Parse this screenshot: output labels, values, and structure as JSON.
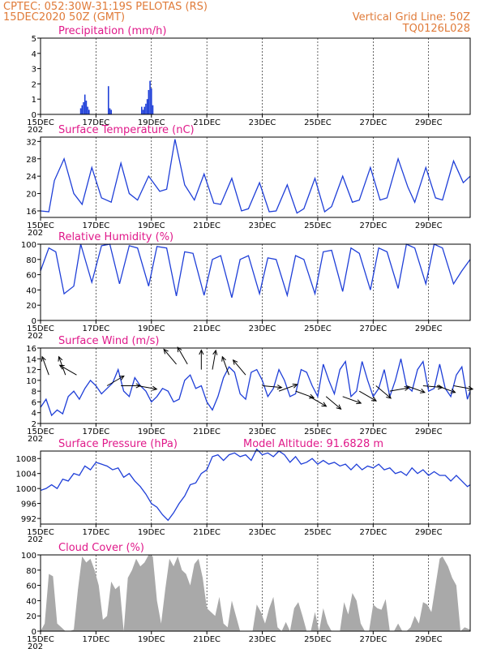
{
  "header": {
    "line1": "CPTEC:   052:30W-31:19S   PELOTAS (RS)",
    "line2": "15DEC2020 50Z (GMT)",
    "right1": "Vertical Grid Line: 50Z",
    "right2": "TQ0126L028"
  },
  "colors": {
    "header": "#e07b39",
    "title": "#e0198a",
    "series": "#1f3fd8",
    "cloud": "#a9a9a9",
    "grid": "#000000"
  },
  "x_axis": {
    "tick_labels": [
      "15DEC",
      "17DEC",
      "19DEC",
      "21DEC",
      "23DEC",
      "25DEC",
      "27DEC",
      "29DEC"
    ],
    "tick_days": [
      0,
      2,
      4,
      6,
      8,
      10,
      12,
      14
    ],
    "day_range": [
      0,
      15.5
    ],
    "year_fragment": "202"
  },
  "model_altitude": "Model Altitude: 91.6828 m",
  "chart_data": [
    {
      "id": "precip",
      "type": "bar",
      "title": "Precipitation (mm/h)",
      "ylim": [
        0,
        5
      ],
      "yticks": [
        0,
        1,
        2,
        3,
        4,
        5
      ],
      "bars": [
        [
          1.45,
          0.4
        ],
        [
          1.5,
          0.6
        ],
        [
          1.55,
          0.8
        ],
        [
          1.6,
          1.3
        ],
        [
          1.65,
          0.9
        ],
        [
          1.7,
          0.5
        ],
        [
          1.75,
          0.3
        ],
        [
          2.45,
          1.85
        ],
        [
          2.5,
          0.4
        ],
        [
          2.55,
          0.3
        ],
        [
          3.65,
          0.5
        ],
        [
          3.7,
          0.3
        ],
        [
          3.75,
          0.5
        ],
        [
          3.8,
          0.7
        ],
        [
          3.85,
          1.0
        ],
        [
          3.9,
          1.6
        ],
        [
          3.95,
          2.2
        ],
        [
          4.0,
          1.7
        ],
        [
          4.05,
          0.6
        ]
      ]
    },
    {
      "id": "temp",
      "type": "line",
      "title": "Surface Temperature (nC)",
      "ylim": [
        14.5,
        33
      ],
      "yticks": [
        16,
        20,
        24,
        28,
        32
      ],
      "x": [
        0,
        0.3,
        0.5,
        0.85,
        1.2,
        1.5,
        1.85,
        2.2,
        2.55,
        2.9,
        3.2,
        3.5,
        3.9,
        4.3,
        4.55,
        4.85,
        5.2,
        5.55,
        5.9,
        6.25,
        6.5,
        6.9,
        7.25,
        7.5,
        7.9,
        8.25,
        8.5,
        8.9,
        9.25,
        9.5,
        9.9,
        10.25,
        10.5,
        10.9,
        11.25,
        11.5,
        11.9,
        12.25,
        12.5,
        12.9,
        13.25,
        13.5,
        13.9,
        14.25,
        14.5,
        14.9,
        15.25,
        15.5
      ],
      "y": [
        16,
        15.8,
        23,
        28,
        20,
        17.5,
        26,
        19,
        18,
        27,
        20,
        18.5,
        24,
        20.5,
        21,
        32.5,
        22,
        18.5,
        24.5,
        17.8,
        17.5,
        23.5,
        16,
        16.5,
        22.5,
        15.8,
        16,
        22,
        15.5,
        16.5,
        23.5,
        15.8,
        17,
        24,
        18,
        18.5,
        26,
        18.5,
        19,
        28,
        21.5,
        18,
        26,
        19,
        18.5,
        27.5,
        22.5,
        24
      ]
    },
    {
      "id": "rh",
      "type": "line",
      "title": "Relative Humidity (%)",
      "ylim": [
        0,
        100
      ],
      "yticks": [
        0,
        20,
        40,
        60,
        80,
        100
      ],
      "x": [
        0,
        0.3,
        0.55,
        0.85,
        1.2,
        1.45,
        1.85,
        2.2,
        2.5,
        2.85,
        3.2,
        3.5,
        3.9,
        4.2,
        4.55,
        4.9,
        5.2,
        5.5,
        5.9,
        6.2,
        6.5,
        6.9,
        7.2,
        7.5,
        7.9,
        8.2,
        8.5,
        8.9,
        9.2,
        9.5,
        9.9,
        10.2,
        10.5,
        10.9,
        11.2,
        11.5,
        11.9,
        12.2,
        12.5,
        12.9,
        13.2,
        13.5,
        13.9,
        14.2,
        14.5,
        14.9,
        15.2,
        15.5
      ],
      "y": [
        65,
        95,
        90,
        35,
        45,
        100,
        50,
        98,
        100,
        48,
        98,
        95,
        45,
        97,
        95,
        32,
        90,
        88,
        33,
        80,
        85,
        30,
        80,
        85,
        35,
        82,
        80,
        33,
        85,
        80,
        35,
        90,
        92,
        38,
        95,
        88,
        40,
        95,
        90,
        42,
        100,
        95,
        48,
        100,
        95,
        48,
        65,
        80
      ]
    },
    {
      "id": "wind",
      "type": "line",
      "title": "Surface Wind (m/s)",
      "ylim": [
        2,
        16
      ],
      "yticks": [
        2,
        4,
        6,
        8,
        10,
        12,
        14,
        16
      ],
      "x": [
        0,
        0.2,
        0.4,
        0.6,
        0.8,
        1.0,
        1.2,
        1.4,
        1.6,
        1.8,
        2.0,
        2.2,
        2.4,
        2.6,
        2.8,
        3.0,
        3.2,
        3.4,
        3.6,
        3.8,
        4.0,
        4.2,
        4.4,
        4.6,
        4.8,
        5.0,
        5.2,
        5.4,
        5.6,
        5.8,
        6.0,
        6.2,
        6.4,
        6.6,
        6.8,
        7.0,
        7.2,
        7.4,
        7.6,
        7.8,
        8.0,
        8.2,
        8.4,
        8.6,
        8.8,
        9.0,
        9.2,
        9.4,
        9.6,
        9.8,
        10.0,
        10.2,
        10.4,
        10.6,
        10.8,
        11.0,
        11.2,
        11.4,
        11.6,
        11.8,
        12.0,
        12.2,
        12.4,
        12.6,
        12.8,
        13.0,
        13.2,
        13.4,
        13.6,
        13.8,
        14.0,
        14.2,
        14.4,
        14.6,
        14.8,
        15.0,
        15.2,
        15.4,
        15.5
      ],
      "y": [
        5,
        6.5,
        3.5,
        4.5,
        3.8,
        7,
        8,
        6.5,
        8.5,
        10,
        9,
        7.5,
        8.5,
        9.5,
        12,
        8,
        7,
        10.5,
        9,
        8,
        6,
        7,
        8.5,
        8,
        6,
        6.5,
        10,
        11,
        8.5,
        9,
        6,
        4.5,
        7,
        10.5,
        12.5,
        11.5,
        7.5,
        6.5,
        11.5,
        12,
        10,
        7,
        8.5,
        12,
        10,
        7,
        7.5,
        12,
        11.5,
        9,
        7,
        13,
        10,
        7.5,
        12,
        13.5,
        7,
        8,
        13.5,
        10,
        7,
        8.5,
        12,
        7,
        10,
        14,
        9,
        8,
        12,
        13.5,
        8,
        8.5,
        13,
        8.5,
        7,
        11,
        12.5,
        6.5,
        8
      ]
    },
    {
      "id": "pressure",
      "type": "line",
      "title": "Surface Pressure (hPa)",
      "ylim": [
        990.5,
        1010
      ],
      "yticks": [
        992,
        996,
        1000,
        1004,
        1008
      ],
      "x": [
        0,
        0.2,
        0.4,
        0.6,
        0.8,
        1.0,
        1.2,
        1.4,
        1.6,
        1.8,
        2.0,
        2.2,
        2.4,
        2.6,
        2.8,
        3.0,
        3.2,
        3.4,
        3.6,
        3.8,
        4.0,
        4.2,
        4.4,
        4.6,
        4.8,
        5.0,
        5.2,
        5.4,
        5.6,
        5.8,
        6.0,
        6.2,
        6.4,
        6.6,
        6.8,
        7.0,
        7.2,
        7.4,
        7.6,
        7.8,
        8.0,
        8.2,
        8.4,
        8.6,
        8.8,
        9.0,
        9.2,
        9.4,
        9.6,
        9.8,
        10.0,
        10.2,
        10.4,
        10.6,
        10.8,
        11.0,
        11.2,
        11.4,
        11.6,
        11.8,
        12.0,
        12.2,
        12.4,
        12.6,
        12.8,
        13.0,
        13.2,
        13.4,
        13.6,
        13.8,
        14.0,
        14.2,
        14.4,
        14.6,
        14.8,
        15.0,
        15.2,
        15.4,
        15.5
      ],
      "y": [
        999.5,
        1000,
        1001,
        1000,
        1002.5,
        1002,
        1004,
        1003.5,
        1006,
        1005,
        1007,
        1006.5,
        1006,
        1005,
        1005.5,
        1003,
        1004,
        1002,
        1000.5,
        998.5,
        996,
        995,
        993,
        991.5,
        993.5,
        996,
        998,
        1001,
        1001.5,
        1004,
        1005,
        1008.5,
        1009,
        1007.5,
        1009,
        1009.5,
        1008.5,
        1009,
        1007.5,
        1010.5,
        1009,
        1009.5,
        1008.5,
        1010,
        1009,
        1007,
        1008.5,
        1006.5,
        1007,
        1008,
        1006.5,
        1007.5,
        1006.5,
        1007,
        1006,
        1006.5,
        1005,
        1006.5,
        1005,
        1006,
        1005.5,
        1006.5,
        1005,
        1005.5,
        1004,
        1004.5,
        1003.5,
        1005.5,
        1004,
        1005,
        1003.5,
        1004.5,
        1003.5,
        1003.5,
        1002,
        1003.5,
        1002,
        1000.5,
        1001
      ]
    },
    {
      "id": "cloud",
      "type": "area",
      "title": "Cloud Cover (%)",
      "ylim": [
        0,
        100
      ],
      "yticks": [
        0,
        20,
        40,
        60,
        80,
        100
      ],
      "x": [
        0,
        0.15,
        0.3,
        0.45,
        0.6,
        0.75,
        0.9,
        1.05,
        1.2,
        1.35,
        1.5,
        1.65,
        1.8,
        1.95,
        2.1,
        2.25,
        2.4,
        2.55,
        2.7,
        2.85,
        3.0,
        3.15,
        3.3,
        3.45,
        3.6,
        3.75,
        3.9,
        4.05,
        4.2,
        4.35,
        4.5,
        4.65,
        4.8,
        4.95,
        5.1,
        5.25,
        5.4,
        5.55,
        5.7,
        5.85,
        6.0,
        6.15,
        6.3,
        6.45,
        6.6,
        6.75,
        6.9,
        7.05,
        7.2,
        7.35,
        7.5,
        7.65,
        7.8,
        7.95,
        8.1,
        8.25,
        8.4,
        8.55,
        8.7,
        8.85,
        9.0,
        9.15,
        9.3,
        9.45,
        9.6,
        9.75,
        9.9,
        10.05,
        10.2,
        10.35,
        10.5,
        10.65,
        10.8,
        10.95,
        11.1,
        11.25,
        11.4,
        11.55,
        11.7,
        11.85,
        12.0,
        12.15,
        12.3,
        12.45,
        12.6,
        12.75,
        12.9,
        13.05,
        13.2,
        13.35,
        13.5,
        13.65,
        13.8,
        13.95,
        14.1,
        14.25,
        14.4,
        14.5,
        14.7,
        14.85,
        15.0,
        15.15,
        15.3,
        15.5
      ],
      "y": [
        0,
        10,
        75,
        72,
        10,
        5,
        0,
        0,
        2,
        55,
        98,
        90,
        95,
        80,
        60,
        15,
        20,
        65,
        55,
        60,
        0,
        70,
        80,
        95,
        85,
        90,
        100,
        98,
        40,
        10,
        55,
        95,
        85,
        98,
        80,
        75,
        60,
        88,
        95,
        70,
        30,
        25,
        20,
        45,
        10,
        5,
        40,
        20,
        0,
        0,
        0,
        0,
        35,
        25,
        10,
        30,
        45,
        5,
        0,
        12,
        0,
        30,
        38,
        20,
        0,
        0,
        25,
        0,
        30,
        10,
        0,
        0,
        0,
        38,
        22,
        50,
        40,
        10,
        0,
        0,
        35,
        30,
        28,
        42,
        0,
        0,
        10,
        0,
        0,
        5,
        20,
        10,
        38,
        35,
        25,
        60,
        95,
        98,
        85,
        70,
        60,
        0,
        5,
        2
      ]
    }
  ],
  "wind_arrows": [
    [
      0.3,
      11,
      -110
    ],
    [
      0.9,
      11,
      -110
    ],
    [
      1.3,
      11,
      -150
    ],
    [
      2.4,
      9,
      -30
    ],
    [
      2.9,
      9,
      0
    ],
    [
      3.5,
      9,
      10
    ],
    [
      4.9,
      13,
      -130
    ],
    [
      5.3,
      13,
      -120
    ],
    [
      5.8,
      12,
      -90
    ],
    [
      6.2,
      12,
      -80
    ],
    [
      6.8,
      11,
      -110
    ],
    [
      7.4,
      11,
      -130
    ],
    [
      8.0,
      9,
      5
    ],
    [
      8.6,
      8,
      -20
    ],
    [
      9.2,
      8,
      20
    ],
    [
      9.7,
      7,
      30
    ],
    [
      10.3,
      7,
      40
    ],
    [
      10.9,
      7,
      20
    ],
    [
      11.5,
      8,
      30
    ],
    [
      12.1,
      9,
      40
    ],
    [
      12.6,
      8,
      -10
    ],
    [
      13.2,
      9,
      20
    ],
    [
      13.8,
      9,
      5
    ],
    [
      14.3,
      9,
      20
    ],
    [
      14.9,
      9,
      10
    ]
  ]
}
